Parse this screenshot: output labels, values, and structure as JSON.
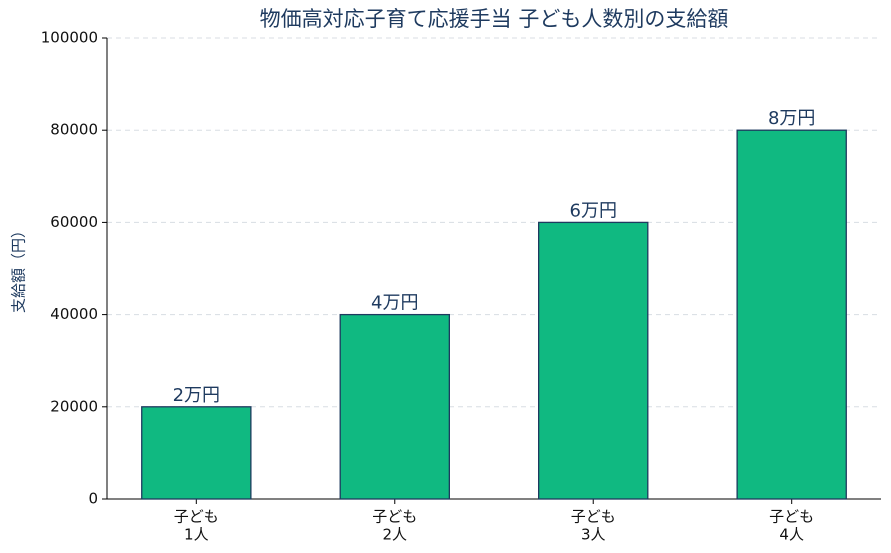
{
  "chart_data": {
    "type": "bar",
    "title": "物価高対応子育て応援手当 子ども人数別の支給額",
    "ylabel": "支給額（円）",
    "categories": [
      [
        "子ども",
        "1人"
      ],
      [
        "子ども",
        "2人"
      ],
      [
        "子ども",
        "3人"
      ],
      [
        "子ども",
        "4人"
      ]
    ],
    "values": [
      20000,
      40000,
      60000,
      80000
    ],
    "value_labels": [
      "2万円",
      "4万円",
      "6万円",
      "8万円"
    ],
    "color": "#10b981",
    "edgecolor": "#1e3a5f",
    "ylim": [
      0,
      100000
    ],
    "yticks": [
      0,
      20000,
      40000,
      60000,
      80000,
      100000
    ],
    "grid": true
  }
}
